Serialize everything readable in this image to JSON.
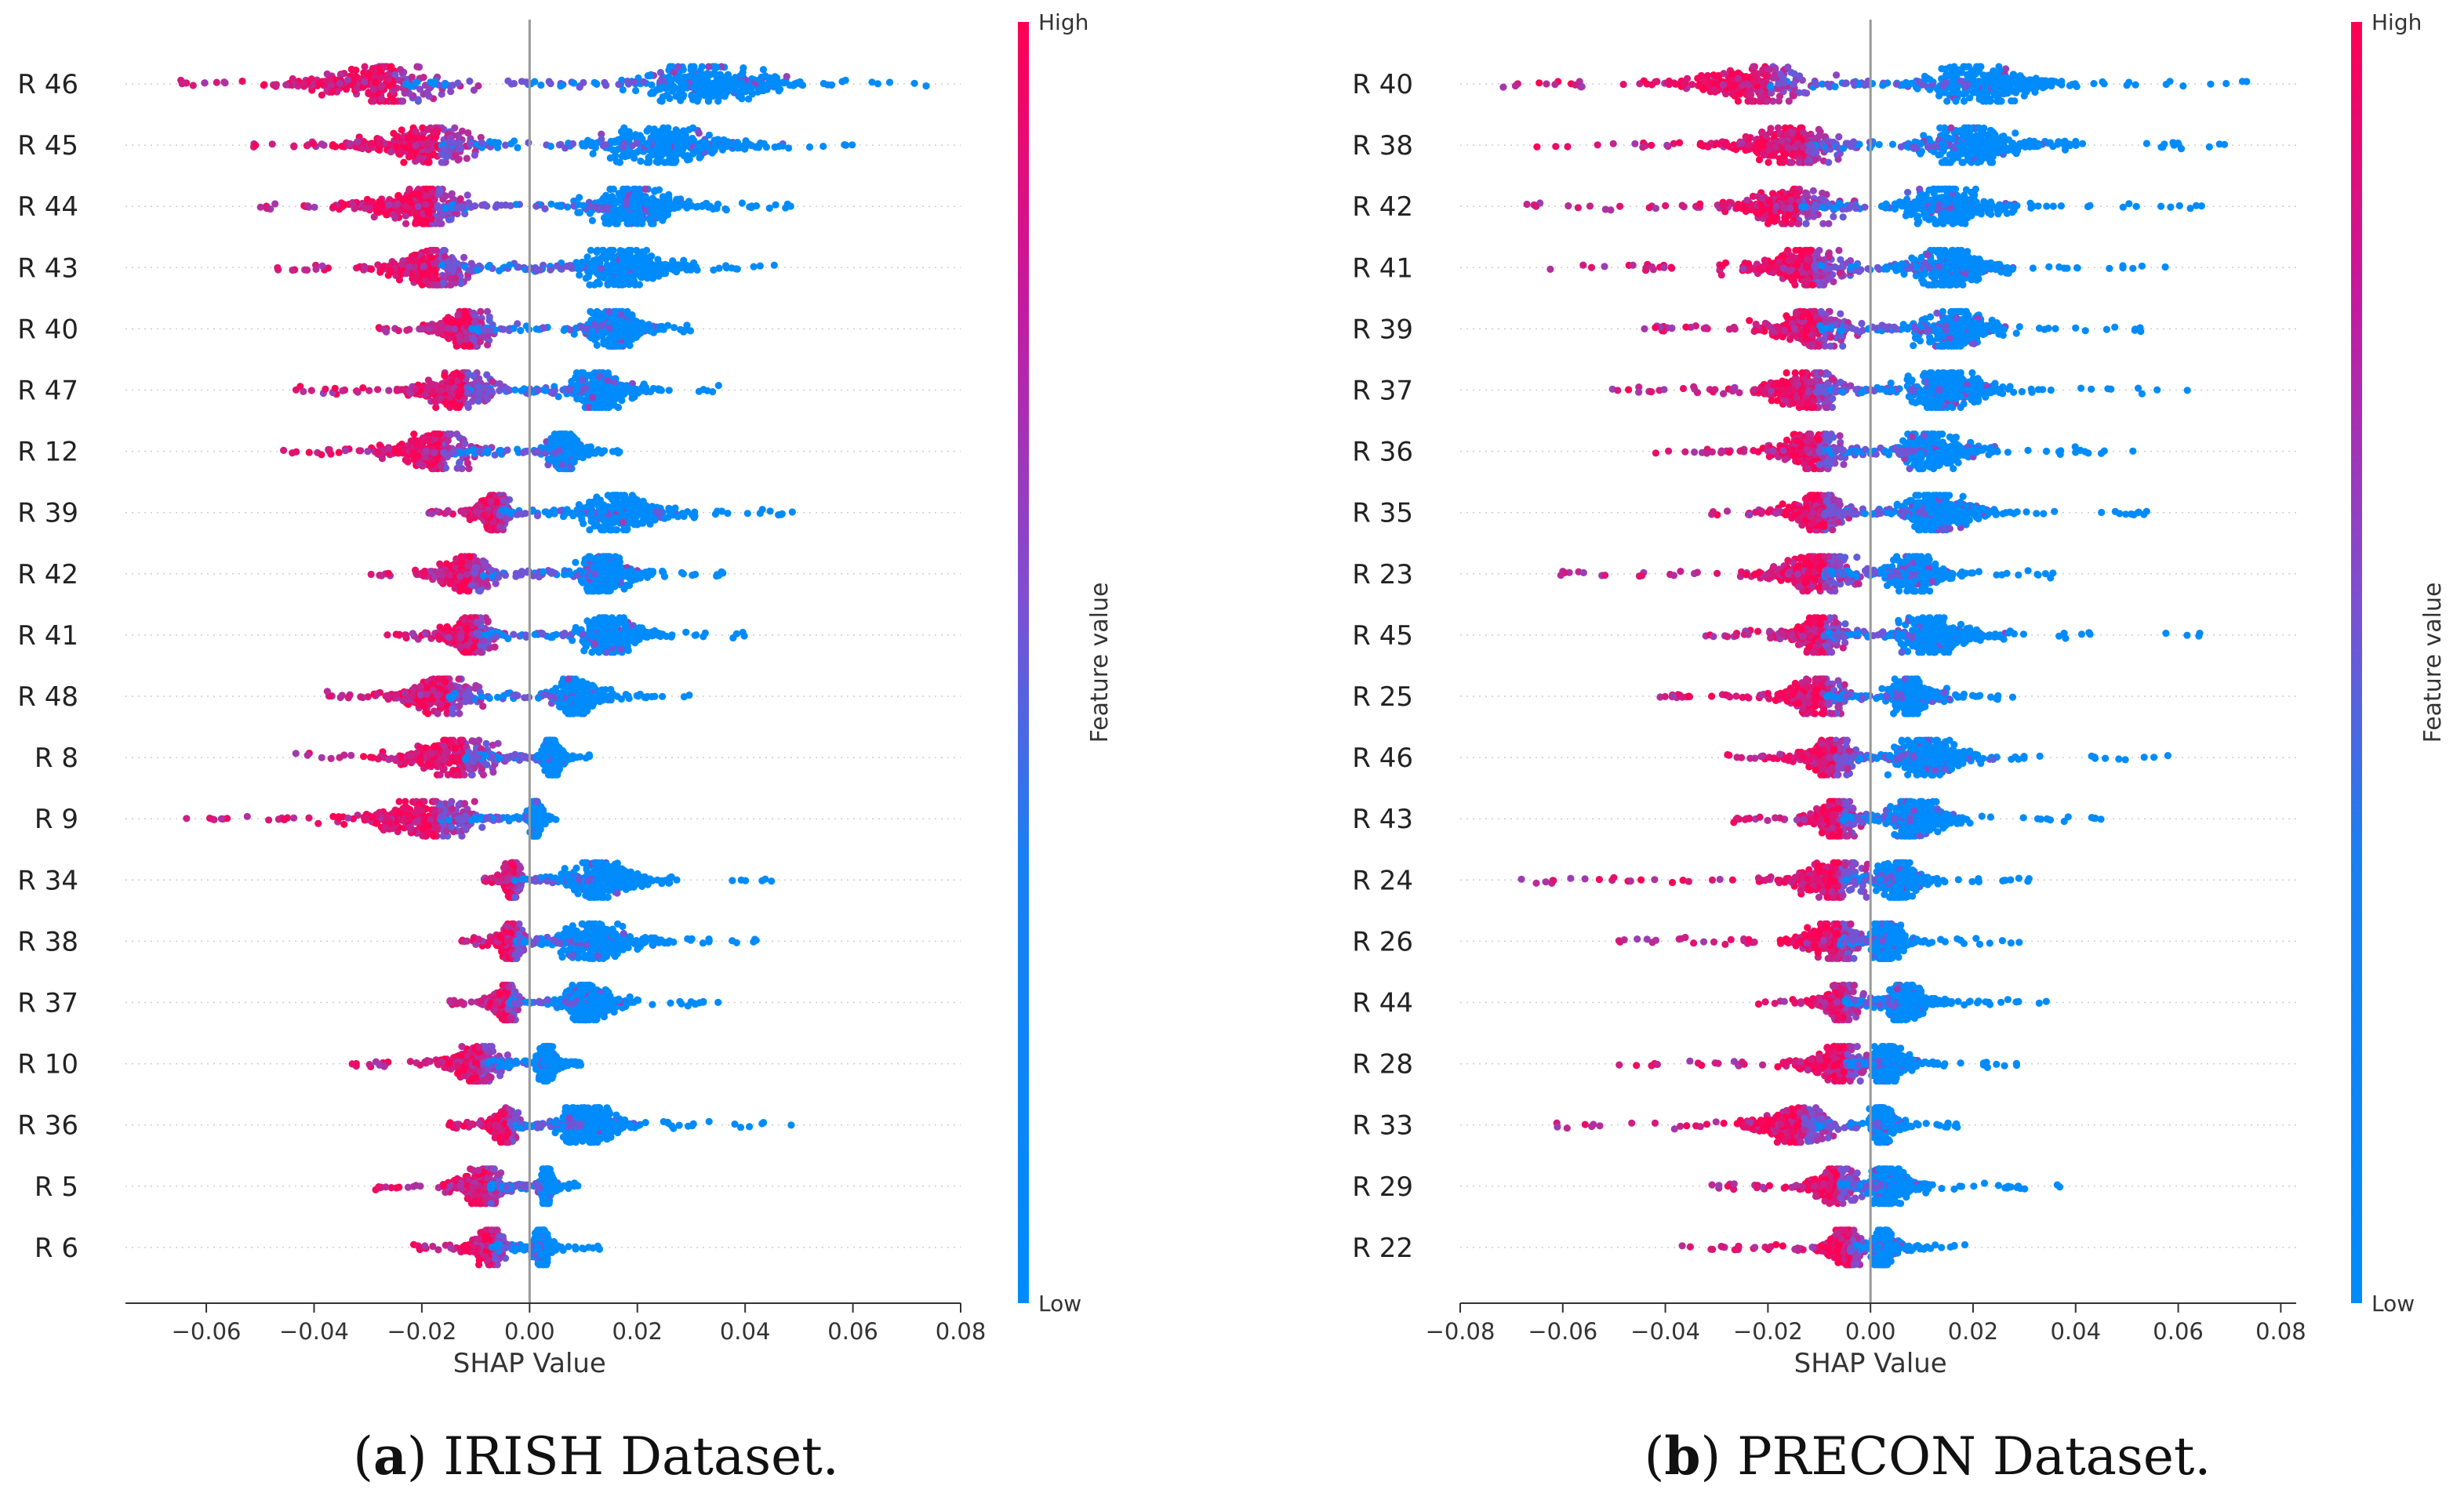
{
  "colors": {
    "low": "#008bfb",
    "high": "#ff0052",
    "mid": "#7e4fd1",
    "axis": "#333333",
    "zero_line": "#999999",
    "grid_dots": "#cccccc"
  },
  "chart_data": [
    {
      "type": "scatter",
      "subtype": "shap-beeswarm",
      "caption_label": "a",
      "caption_text": "IRISH Dataset.",
      "xlabel": "SHAP Value",
      "xlim": [
        -0.075,
        0.08
      ],
      "xticks": [
        -0.06,
        -0.04,
        -0.02,
        0.0,
        0.02,
        0.04,
        0.06,
        0.08
      ],
      "xtick_labels": [
        "−0.06",
        "−0.04",
        "−0.02",
        "0.00",
        "0.02",
        "0.04",
        "0.06",
        "0.08"
      ],
      "colorbar": {
        "label": "Feature value",
        "high": "High",
        "low": "Low"
      },
      "features": [
        {
          "name": "R 46",
          "min": -0.068,
          "max": 0.076,
          "neg_center": -0.025,
          "pos_center": 0.03,
          "neg_spread": 0.02,
          "pos_spread": 0.022
        },
        {
          "name": "R 45",
          "min": -0.052,
          "max": 0.064,
          "neg_center": -0.017,
          "pos_center": 0.023,
          "neg_spread": 0.016,
          "pos_spread": 0.019
        },
        {
          "name": "R 44",
          "min": -0.05,
          "max": 0.05,
          "neg_center": -0.018,
          "pos_center": 0.018,
          "neg_spread": 0.015,
          "pos_spread": 0.014
        },
        {
          "name": "R 43",
          "min": -0.047,
          "max": 0.046,
          "neg_center": -0.017,
          "pos_center": 0.016,
          "neg_spread": 0.011,
          "pos_spread": 0.013
        },
        {
          "name": "R 40",
          "min": -0.028,
          "max": 0.03,
          "neg_center": -0.011,
          "pos_center": 0.015,
          "neg_spread": 0.008,
          "pos_spread": 0.008
        },
        {
          "name": "R 47",
          "min": -0.044,
          "max": 0.036,
          "neg_center": -0.012,
          "pos_center": 0.012,
          "neg_spread": 0.011,
          "pos_spread": 0.01
        },
        {
          "name": "R 12",
          "min": -0.047,
          "max": 0.017,
          "neg_center": -0.016,
          "pos_center": 0.006,
          "neg_spread": 0.013,
          "pos_spread": 0.005
        },
        {
          "name": "R 39",
          "min": -0.019,
          "max": 0.049,
          "neg_center": -0.006,
          "pos_center": 0.015,
          "neg_spread": 0.005,
          "pos_spread": 0.012
        },
        {
          "name": "R 42",
          "min": -0.03,
          "max": 0.037,
          "neg_center": -0.011,
          "pos_center": 0.013,
          "neg_spread": 0.008,
          "pos_spread": 0.009
        },
        {
          "name": "R 41",
          "min": -0.028,
          "max": 0.041,
          "neg_center": -0.01,
          "pos_center": 0.014,
          "neg_spread": 0.008,
          "pos_spread": 0.01
        },
        {
          "name": "R 48",
          "min": -0.038,
          "max": 0.03,
          "neg_center": -0.015,
          "pos_center": 0.008,
          "neg_spread": 0.011,
          "pos_spread": 0.007
        },
        {
          "name": "R 8",
          "min": -0.045,
          "max": 0.012,
          "neg_center": -0.012,
          "pos_center": 0.004,
          "neg_spread": 0.013,
          "pos_spread": 0.003
        },
        {
          "name": "R 9",
          "min": -0.064,
          "max": 0.005,
          "neg_center": -0.017,
          "pos_center": 0.001,
          "neg_spread": 0.018,
          "pos_spread": 0.002
        },
        {
          "name": "R 34",
          "min": -0.009,
          "max": 0.045,
          "neg_center": -0.003,
          "pos_center": 0.012,
          "neg_spread": 0.003,
          "pos_spread": 0.011
        },
        {
          "name": "R 38",
          "min": -0.014,
          "max": 0.043,
          "neg_center": -0.003,
          "pos_center": 0.011,
          "neg_spread": 0.004,
          "pos_spread": 0.011
        },
        {
          "name": "R 37",
          "min": -0.015,
          "max": 0.038,
          "neg_center": -0.004,
          "pos_center": 0.01,
          "neg_spread": 0.004,
          "pos_spread": 0.008
        },
        {
          "name": "R 10",
          "min": -0.035,
          "max": 0.01,
          "neg_center": -0.009,
          "pos_center": 0.003,
          "neg_spread": 0.008,
          "pos_spread": 0.003
        },
        {
          "name": "R 36",
          "min": -0.015,
          "max": 0.05,
          "neg_center": -0.004,
          "pos_center": 0.01,
          "neg_spread": 0.004,
          "pos_spread": 0.01
        },
        {
          "name": "R 5",
          "min": -0.029,
          "max": 0.009,
          "neg_center": -0.008,
          "pos_center": 0.003,
          "neg_spread": 0.007,
          "pos_spread": 0.002
        },
        {
          "name": "R 6",
          "min": -0.022,
          "max": 0.013,
          "neg_center": -0.007,
          "pos_center": 0.002,
          "neg_spread": 0.005,
          "pos_spread": 0.003
        }
      ]
    },
    {
      "type": "scatter",
      "subtype": "shap-beeswarm",
      "caption_label": "b",
      "caption_text": "PRECON Dataset.",
      "xlabel": "SHAP Value",
      "xlim": [
        -0.08,
        0.083
      ],
      "xticks": [
        -0.08,
        -0.06,
        -0.04,
        -0.02,
        0.0,
        0.02,
        0.04,
        0.06,
        0.08
      ],
      "xtick_labels": [
        "−0.08",
        "−0.06",
        "−0.04",
        "−0.02",
        "0.00",
        "0.02",
        "0.04",
        "0.06",
        "0.08"
      ],
      "colorbar": {
        "label": "Feature value",
        "high": "High",
        "low": "Low"
      },
      "features": [
        {
          "name": "R 40",
          "min": -0.073,
          "max": 0.075,
          "neg_center": -0.02,
          "pos_center": 0.02,
          "neg_spread": 0.018,
          "pos_spread": 0.018
        },
        {
          "name": "R 38",
          "min": -0.066,
          "max": 0.073,
          "neg_center": -0.013,
          "pos_center": 0.018,
          "neg_spread": 0.016,
          "pos_spread": 0.017
        },
        {
          "name": "R 42",
          "min": -0.068,
          "max": 0.068,
          "neg_center": -0.014,
          "pos_center": 0.014,
          "neg_spread": 0.015,
          "pos_spread": 0.014
        },
        {
          "name": "R 41",
          "min": -0.065,
          "max": 0.059,
          "neg_center": -0.011,
          "pos_center": 0.014,
          "neg_spread": 0.013,
          "pos_spread": 0.012
        },
        {
          "name": "R 39",
          "min": -0.045,
          "max": 0.057,
          "neg_center": -0.01,
          "pos_center": 0.015,
          "neg_spread": 0.011,
          "pos_spread": 0.012
        },
        {
          "name": "R 37",
          "min": -0.051,
          "max": 0.063,
          "neg_center": -0.011,
          "pos_center": 0.014,
          "neg_spread": 0.012,
          "pos_spread": 0.013
        },
        {
          "name": "R 36",
          "min": -0.047,
          "max": 0.054,
          "neg_center": -0.01,
          "pos_center": 0.011,
          "neg_spread": 0.011,
          "pos_spread": 0.011
        },
        {
          "name": "R 35",
          "min": -0.033,
          "max": 0.059,
          "neg_center": -0.009,
          "pos_center": 0.012,
          "neg_spread": 0.009,
          "pos_spread": 0.012
        },
        {
          "name": "R 23",
          "min": -0.065,
          "max": 0.037,
          "neg_center": -0.009,
          "pos_center": 0.008,
          "neg_spread": 0.013,
          "pos_spread": 0.008
        },
        {
          "name": "R 45",
          "min": -0.033,
          "max": 0.067,
          "neg_center": -0.009,
          "pos_center": 0.011,
          "neg_spread": 0.008,
          "pos_spread": 0.013
        },
        {
          "name": "R 25",
          "min": -0.047,
          "max": 0.029,
          "neg_center": -0.009,
          "pos_center": 0.007,
          "neg_spread": 0.01,
          "pos_spread": 0.007
        },
        {
          "name": "R 46",
          "min": -0.029,
          "max": 0.06,
          "neg_center": -0.007,
          "pos_center": 0.01,
          "neg_spread": 0.008,
          "pos_spread": 0.012
        },
        {
          "name": "R 43",
          "min": -0.028,
          "max": 0.046,
          "neg_center": -0.006,
          "pos_center": 0.008,
          "neg_spread": 0.007,
          "pos_spread": 0.009
        },
        {
          "name": "R 24",
          "min": -0.07,
          "max": 0.034,
          "neg_center": -0.006,
          "pos_center": 0.005,
          "neg_spread": 0.012,
          "pos_spread": 0.007
        },
        {
          "name": "R 26",
          "min": -0.052,
          "max": 0.029,
          "neg_center": -0.006,
          "pos_center": 0.003,
          "neg_spread": 0.01,
          "pos_spread": 0.006
        },
        {
          "name": "R 44",
          "min": -0.022,
          "max": 0.035,
          "neg_center": -0.005,
          "pos_center": 0.006,
          "neg_spread": 0.006,
          "pos_spread": 0.007
        },
        {
          "name": "R 28",
          "min": -0.049,
          "max": 0.03,
          "neg_center": -0.005,
          "pos_center": 0.003,
          "neg_spread": 0.009,
          "pos_spread": 0.006
        },
        {
          "name": "R 33",
          "min": -0.065,
          "max": 0.017,
          "neg_center": -0.013,
          "pos_center": 0.002,
          "neg_spread": 0.012,
          "pos_spread": 0.004
        },
        {
          "name": "R 29",
          "min": -0.032,
          "max": 0.038,
          "neg_center": -0.006,
          "pos_center": 0.003,
          "neg_spread": 0.007,
          "pos_spread": 0.007
        },
        {
          "name": "R 22",
          "min": -0.037,
          "max": 0.019,
          "neg_center": -0.004,
          "pos_center": 0.002,
          "neg_spread": 0.006,
          "pos_spread": 0.004
        }
      ]
    }
  ]
}
